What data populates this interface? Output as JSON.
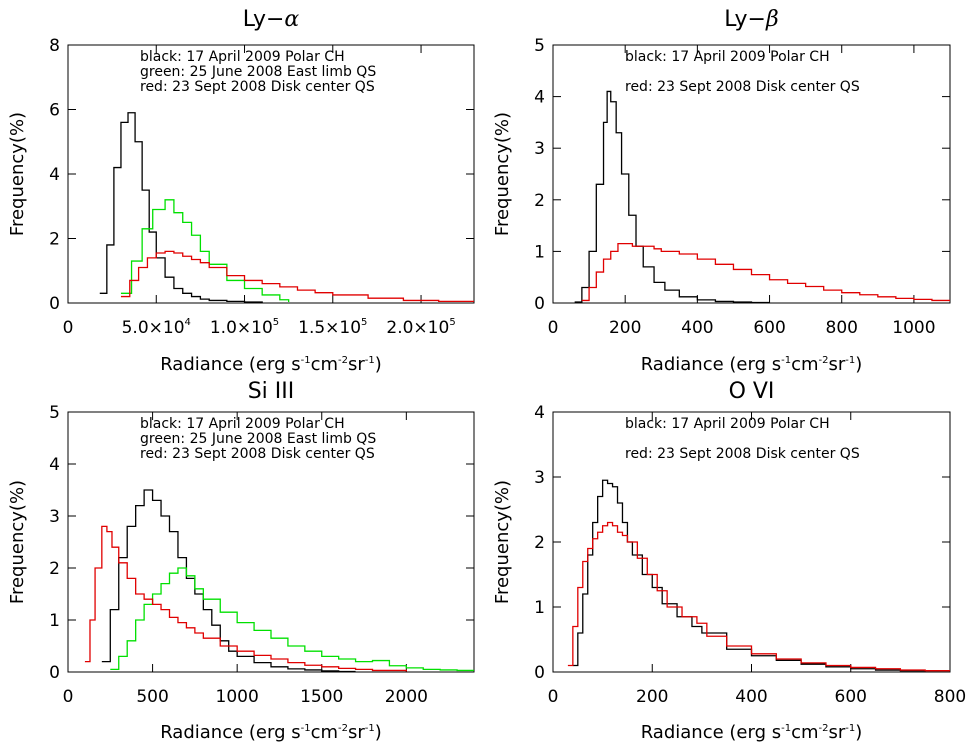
{
  "ylabel": "Frequency(%)",
  "xlabel": {
    "main": "Radiance (erg s",
    "sup1": "-1",
    "mid1": "cm",
    "sup2": "-2",
    "mid2": "sr",
    "sup3": "-1",
    "end": ")"
  },
  "colors": {
    "black": "#000000",
    "green": "#00e000",
    "red": "#e00000"
  },
  "chart_data": [
    {
      "type": "line",
      "title": "Ly-α",
      "title_prefix": "Ly−",
      "title_symbol": "α",
      "xlim": [
        0,
        230000
      ],
      "ylim": [
        0,
        8
      ],
      "xticks": [
        {
          "v": 0,
          "label": "0"
        },
        {
          "v": 50000,
          "label": "5.0×10",
          "exp": "4"
        },
        {
          "v": 100000,
          "label": "1.0×10",
          "exp": "5"
        },
        {
          "v": 150000,
          "label": "1.5×10",
          "exp": "5"
        },
        {
          "v": 200000,
          "label": "2.0×10",
          "exp": "5"
        }
      ],
      "yticks": [
        0,
        2,
        4,
        6,
        8
      ],
      "legend": [
        "black: 17 April 2009 Polar CH",
        "green: 25 June 2008 East limb QS",
        "red: 23 Sept 2008 Disk center QS"
      ],
      "series": [
        {
          "color": "black",
          "x": [
            18000,
            22000,
            26000,
            30000,
            34000,
            38000,
            42000,
            46000,
            50000,
            55000,
            60000,
            65000,
            70000,
            75000,
            80000,
            90000,
            100000,
            110000
          ],
          "y": [
            0.3,
            1.8,
            4.2,
            5.6,
            5.9,
            5.0,
            3.5,
            2.2,
            1.4,
            0.8,
            0.45,
            0.3,
            0.2,
            0.12,
            0.08,
            0.05,
            0.03,
            0.01
          ]
        },
        {
          "color": "green",
          "x": [
            30000,
            36000,
            42000,
            48000,
            55000,
            60000,
            65000,
            70000,
            75000,
            80000,
            90000,
            100000,
            110000,
            120000,
            125000
          ],
          "y": [
            0.3,
            1.3,
            2.3,
            2.9,
            3.2,
            2.8,
            2.5,
            2.1,
            1.6,
            1.2,
            0.7,
            0.45,
            0.25,
            0.1,
            0.03
          ]
        },
        {
          "color": "red",
          "x": [
            30000,
            35000,
            40000,
            45000,
            50000,
            55000,
            60000,
            65000,
            70000,
            75000,
            80000,
            90000,
            100000,
            110000,
            120000,
            130000,
            140000,
            150000,
            170000,
            190000,
            210000,
            230000
          ],
          "y": [
            0.2,
            0.7,
            1.1,
            1.4,
            1.55,
            1.6,
            1.55,
            1.45,
            1.35,
            1.25,
            1.1,
            0.85,
            0.7,
            0.6,
            0.5,
            0.4,
            0.32,
            0.25,
            0.15,
            0.08,
            0.05,
            0.03
          ]
        }
      ]
    },
    {
      "type": "line",
      "title": "Ly-β",
      "title_prefix": "Ly−",
      "title_symbol": "β",
      "xlim": [
        0,
        1100
      ],
      "ylim": [
        0,
        5
      ],
      "xticks": [
        {
          "v": 0,
          "label": "0"
        },
        {
          "v": 200,
          "label": "200"
        },
        {
          "v": 400,
          "label": "400"
        },
        {
          "v": 600,
          "label": "600"
        },
        {
          "v": 800,
          "label": "800"
        },
        {
          "v": 1000,
          "label": "1000"
        }
      ],
      "yticks": [
        0,
        1,
        2,
        3,
        4,
        5
      ],
      "legend": [
        "black: 17 April 2009 Polar CH",
        "red: 23 Sept 2008 Disk center QS"
      ],
      "series": [
        {
          "color": "black",
          "x": [
            60,
            80,
            100,
            120,
            140,
            150,
            160,
            175,
            190,
            210,
            230,
            250,
            280,
            310,
            350,
            400,
            450,
            500,
            550,
            600
          ],
          "y": [
            0.02,
            0.3,
            1.0,
            2.3,
            3.5,
            4.1,
            3.9,
            3.3,
            2.5,
            1.7,
            1.1,
            0.7,
            0.4,
            0.25,
            0.12,
            0.06,
            0.03,
            0.02,
            0.01,
            0.01
          ]
        },
        {
          "color": "red",
          "x": [
            80,
            100,
            120,
            140,
            160,
            180,
            200,
            220,
            250,
            280,
            300,
            350,
            400,
            450,
            500,
            550,
            600,
            650,
            700,
            750,
            800,
            850,
            900,
            950,
            1000,
            1050,
            1100
          ],
          "y": [
            0.05,
            0.3,
            0.6,
            0.85,
            1.0,
            1.15,
            1.15,
            1.1,
            1.1,
            1.05,
            1.0,
            0.95,
            0.85,
            0.75,
            0.65,
            0.55,
            0.45,
            0.38,
            0.32,
            0.25,
            0.2,
            0.16,
            0.12,
            0.09,
            0.07,
            0.05,
            0.04
          ]
        }
      ]
    },
    {
      "type": "line",
      "title": "Si III",
      "title_prefix": "Si III",
      "title_symbol": "",
      "xlim": [
        0,
        2400
      ],
      "ylim": [
        0,
        5
      ],
      "xticks": [
        {
          "v": 0,
          "label": "0"
        },
        {
          "v": 500,
          "label": "500"
        },
        {
          "v": 1000,
          "label": "1000"
        },
        {
          "v": 1500,
          "label": "1500"
        },
        {
          "v": 2000,
          "label": "2000"
        }
      ],
      "yticks": [
        0,
        1,
        2,
        3,
        4,
        5
      ],
      "legend": [
        "black: 17 April 2009 Polar CH",
        "green: 25 June 2008 East limb QS",
        "red: 23 Sept 2008 Disk center QS"
      ],
      "series": [
        {
          "color": "black",
          "x": [
            200,
            250,
            300,
            350,
            400,
            450,
            500,
            550,
            600,
            650,
            700,
            750,
            800,
            850,
            900,
            950,
            1000,
            1100,
            1200,
            1300,
            1400,
            1500,
            1600,
            1700
          ],
          "y": [
            0.2,
            1.2,
            2.2,
            2.8,
            3.2,
            3.5,
            3.3,
            3.0,
            2.7,
            2.2,
            1.8,
            1.5,
            1.2,
            0.9,
            0.6,
            0.4,
            0.3,
            0.18,
            0.1,
            0.06,
            0.04,
            0.02,
            0.01,
            0.01
          ]
        },
        {
          "color": "green",
          "x": [
            250,
            300,
            350,
            400,
            450,
            500,
            550,
            600,
            650,
            700,
            750,
            800,
            900,
            1000,
            1100,
            1200,
            1300,
            1400,
            1500,
            1600,
            1700,
            1800,
            1900,
            2000,
            2100,
            2200,
            2300,
            2400
          ],
          "y": [
            0.05,
            0.3,
            0.6,
            1.0,
            1.3,
            1.5,
            1.7,
            1.9,
            2.0,
            1.85,
            1.6,
            1.4,
            1.15,
            0.95,
            0.8,
            0.65,
            0.5,
            0.4,
            0.3,
            0.25,
            0.2,
            0.22,
            0.12,
            0.08,
            0.05,
            0.04,
            0.03,
            0.02
          ]
        },
        {
          "color": "red",
          "x": [
            100,
            130,
            160,
            200,
            230,
            260,
            300,
            350,
            400,
            450,
            500,
            550,
            600,
            650,
            700,
            750,
            800,
            900,
            1000,
            1100,
            1200,
            1300,
            1400,
            1500,
            1600,
            1700,
            1800,
            2000
          ],
          "y": [
            0.2,
            1.0,
            2.0,
            2.8,
            2.7,
            2.4,
            2.1,
            1.8,
            1.5,
            1.4,
            1.3,
            1.2,
            1.05,
            0.95,
            0.85,
            0.75,
            0.65,
            0.5,
            0.4,
            0.32,
            0.25,
            0.18,
            0.13,
            0.1,
            0.07,
            0.05,
            0.03,
            0.01
          ]
        }
      ]
    },
    {
      "type": "line",
      "title": "O VI",
      "title_prefix": "O VI",
      "title_symbol": "",
      "xlim": [
        0,
        800
      ],
      "ylim": [
        0,
        4
      ],
      "xticks": [
        {
          "v": 0,
          "label": "0"
        },
        {
          "v": 200,
          "label": "200"
        },
        {
          "v": 400,
          "label": "400"
        },
        {
          "v": 600,
          "label": "600"
        },
        {
          "v": 800,
          "label": "800"
        }
      ],
      "yticks": [
        0,
        1,
        2,
        3,
        4
      ],
      "legend": [
        "black: 17 April 2009 Polar CH",
        "red: 23 Sept 2008 Disk center QS"
      ],
      "series": [
        {
          "color": "black",
          "x": [
            40,
            50,
            60,
            70,
            80,
            90,
            100,
            110,
            120,
            130,
            140,
            150,
            160,
            180,
            200,
            220,
            250,
            280,
            300,
            350,
            400,
            450,
            500,
            550,
            600,
            650,
            700,
            750
          ],
          "y": [
            0.1,
            0.6,
            1.2,
            1.8,
            2.3,
            2.7,
            2.95,
            2.9,
            2.85,
            2.6,
            2.3,
            2.0,
            1.8,
            1.5,
            1.3,
            1.05,
            0.85,
            0.7,
            0.6,
            0.35,
            0.25,
            0.18,
            0.12,
            0.08,
            0.05,
            0.03,
            0.02,
            0.01
          ]
        },
        {
          "color": "red",
          "x": [
            30,
            40,
            50,
            60,
            70,
            80,
            90,
            100,
            110,
            120,
            130,
            140,
            150,
            170,
            190,
            210,
            230,
            260,
            290,
            310,
            350,
            400,
            450,
            500,
            550,
            600,
            650,
            700,
            750,
            800
          ],
          "y": [
            0.1,
            0.7,
            1.3,
            1.7,
            1.9,
            2.05,
            2.15,
            2.25,
            2.3,
            2.25,
            2.15,
            2.1,
            2.0,
            1.75,
            1.5,
            1.25,
            1.0,
            0.85,
            0.75,
            0.55,
            0.4,
            0.28,
            0.2,
            0.14,
            0.1,
            0.07,
            0.05,
            0.03,
            0.02,
            0.01
          ]
        }
      ]
    }
  ]
}
